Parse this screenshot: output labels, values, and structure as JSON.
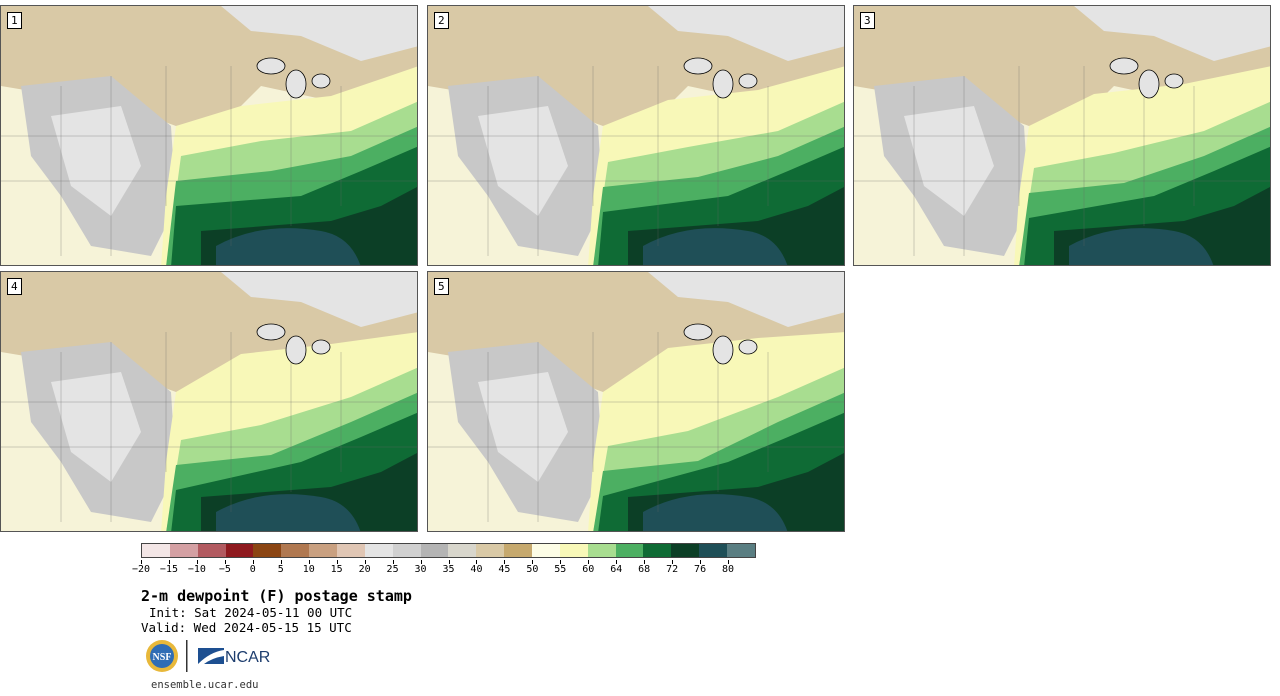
{
  "panels": [
    {
      "label": "1"
    },
    {
      "label": "2"
    },
    {
      "label": "3"
    },
    {
      "label": "4"
    },
    {
      "label": "5"
    }
  ],
  "colorbar": {
    "colors": [
      "#f3e6e6",
      "#d4a0a3",
      "#b25a60",
      "#8f1a1f",
      "#8b4513",
      "#b07850",
      "#c9a080",
      "#e0c6b4",
      "#e4e4e4",
      "#d0d0d0",
      "#b4b4b4",
      "#d8d6cc",
      "#d9c9a6",
      "#c6a96e",
      "#fdfde6",
      "#f8f8b8",
      "#a8dd90",
      "#4caf62",
      "#0f6b35",
      "#0c3f26",
      "#1f4f57",
      "#5a7e82"
    ],
    "tick_labels": [
      "−20",
      "−15",
      "−10",
      "−5",
      "0",
      "5",
      "10",
      "15",
      "20",
      "25",
      "30",
      "35",
      "40",
      "45",
      "50",
      "55",
      "60",
      "64",
      "68",
      "72",
      "76",
      "80"
    ]
  },
  "title": "2-m dewpoint (F) postage stamp",
  "init": "Init: Sat 2024-05-11 00 UTC",
  "valid": "Valid: Wed 2024-05-15 15 UTC",
  "logos": {
    "nsf": "NSF",
    "ncar": "NCAR"
  },
  "site": "ensemble.ucar.edu",
  "map_colors": {
    "background": "#f6f3d8",
    "tan": "#d9c9a6",
    "tan_dark": "#c6a96e",
    "gray_light": "#e4e4e4",
    "gray": "#c8c8c8",
    "cream": "#fdfde6",
    "yellow": "#f8f8b8",
    "green_light": "#a8dd90",
    "green": "#4caf62",
    "green_dark": "#0f6b35",
    "green_darker": "#0c3f26",
    "ocean": "#1f4f57"
  }
}
